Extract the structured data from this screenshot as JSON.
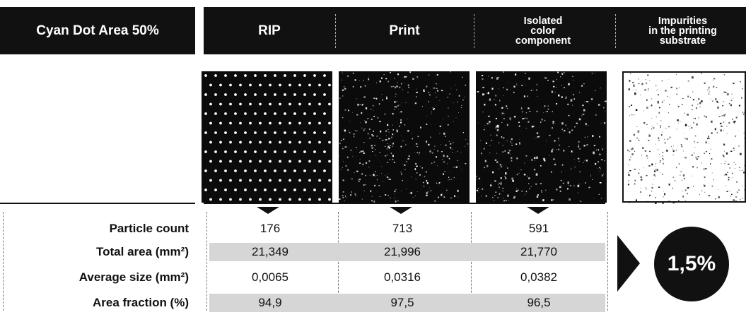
{
  "header": {
    "title": "Cyan Dot Area 50%",
    "columns": [
      {
        "label": "RIP"
      },
      {
        "label": "Print"
      },
      {
        "label": "Isolated\ncolor\ncomponent"
      },
      {
        "label": "Impurities\nin the printing\nsubstrate"
      }
    ]
  },
  "rows": [
    {
      "label": "Particle count",
      "values": [
        "176",
        "713",
        "591"
      ]
    },
    {
      "label": "Total area (mm²)",
      "values": [
        "21,349",
        "21,996",
        "21,770"
      ]
    },
    {
      "label": "Average size (mm²)",
      "values": [
        "0,0065",
        "0,0316",
        "0,0382"
      ]
    },
    {
      "label": "Area fraction (%)",
      "values": [
        "94,9",
        "97,5",
        "96,5"
      ]
    }
  ],
  "result": {
    "value": "1,5%"
  },
  "colors": {
    "dark": "#111111",
    "shade": "#d6d6d6",
    "dot": "#ffffff"
  }
}
